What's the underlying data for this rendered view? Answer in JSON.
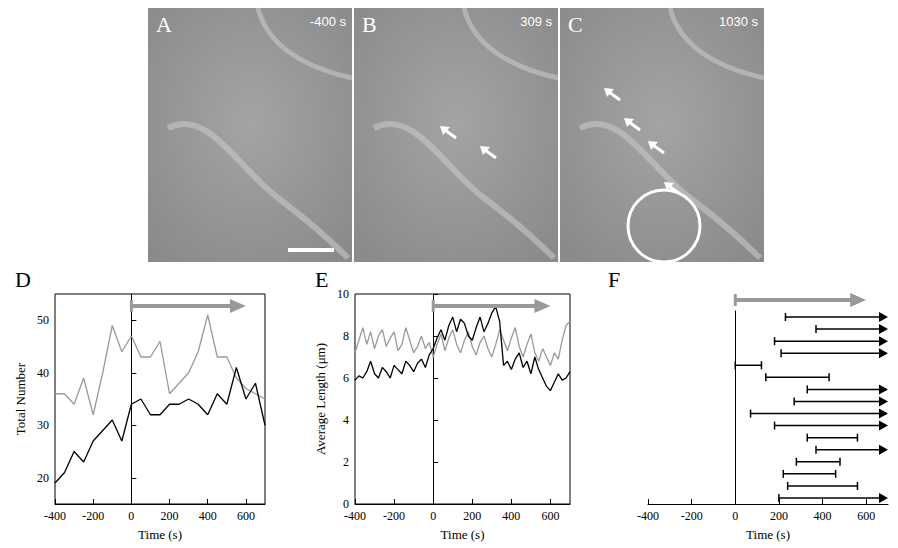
{
  "images": [
    {
      "letter": "A",
      "time": "-400 s"
    },
    {
      "letter": "B",
      "time": "309 s"
    },
    {
      "letter": "C",
      "time": "1030 s"
    }
  ],
  "chart_data": [
    {
      "panel": "D",
      "type": "line",
      "x": [
        -400,
        -350,
        -300,
        -250,
        -200,
        -150,
        -100,
        -50,
        0,
        50,
        100,
        150,
        200,
        250,
        300,
        350,
        400,
        450,
        500,
        550,
        600,
        650,
        700
      ],
      "series": [
        {
          "color": "#999999",
          "values": [
            36,
            36,
            34,
            39,
            32,
            40,
            49,
            44,
            47,
            43,
            43,
            46,
            36,
            38,
            40,
            44,
            51,
            43,
            43,
            39,
            37,
            36,
            35
          ]
        },
        {
          "color": "#000000",
          "values": [
            19,
            21,
            25,
            23,
            27,
            29,
            31,
            27,
            34,
            35,
            32,
            32,
            34,
            34,
            35,
            34,
            32,
            36,
            34,
            41,
            35,
            38,
            30
          ]
        }
      ],
      "xlabel": "Time (s)",
      "ylabel": "Total Number",
      "xlim": [
        -400,
        700
      ],
      "xticks": [
        -400,
        -200,
        0,
        200,
        400,
        600
      ],
      "ylim": [
        15,
        55
      ],
      "yticks": [
        20,
        30,
        40,
        50
      ],
      "arrow": {
        "x": [
          0,
          600
        ],
        "color": "#999999"
      }
    },
    {
      "panel": "E",
      "type": "line",
      "x": [
        -400,
        -380,
        -360,
        -340,
        -320,
        -300,
        -280,
        -260,
        -240,
        -220,
        -200,
        -180,
        -160,
        -140,
        -120,
        -100,
        -80,
        -60,
        -40,
        -20,
        0,
        20,
        40,
        60,
        80,
        100,
        120,
        140,
        160,
        180,
        200,
        220,
        240,
        260,
        280,
        300,
        320,
        340,
        360,
        380,
        400,
        420,
        440,
        460,
        480,
        500,
        520,
        540,
        560,
        580,
        600,
        620,
        640,
        660,
        680,
        700
      ],
      "series": [
        {
          "color": "#999999",
          "values": [
            7.2,
            7.8,
            8.4,
            7.6,
            8.2,
            7.4,
            8.0,
            8.3,
            7.5,
            7.9,
            8.2,
            7.3,
            7.6,
            8.4,
            7.8,
            7.2,
            7.5,
            8.0,
            7.4,
            7.7,
            7.0,
            7.6,
            8.1,
            7.3,
            7.9,
            8.3,
            7.6,
            7.2,
            7.8,
            8.2,
            7.5,
            7.1,
            7.7,
            8.0,
            7.4,
            7.0,
            7.6,
            8.3,
            7.8,
            7.3,
            7.9,
            8.4,
            7.5,
            7.0,
            7.6,
            8.1,
            7.2,
            6.8,
            7.4,
            7.0,
            6.6,
            7.2,
            6.9,
            7.8,
            8.5,
            8.7
          ]
        },
        {
          "color": "#000000",
          "values": [
            5.9,
            6.1,
            6.0,
            6.3,
            6.8,
            6.2,
            6.0,
            6.5,
            6.3,
            6.0,
            6.6,
            6.4,
            6.2,
            6.8,
            6.6,
            6.3,
            6.7,
            6.9,
            6.5,
            7.1,
            7.4,
            7.9,
            8.3,
            7.8,
            8.5,
            8.9,
            8.2,
            8.8,
            8.6,
            8.0,
            7.8,
            8.4,
            8.9,
            8.2,
            8.6,
            9.1,
            9.4,
            8.7,
            6.6,
            6.8,
            6.4,
            6.9,
            7.2,
            6.5,
            6.8,
            6.2,
            7.0,
            6.4,
            6.0,
            5.6,
            5.4,
            5.8,
            6.2,
            5.9,
            6.0,
            6.3
          ]
        }
      ],
      "xlabel": "Time (s)",
      "ylabel": "Average Length (μm)",
      "xlim": [
        -400,
        700
      ],
      "xticks": [
        -400,
        -200,
        0,
        200,
        400,
        600
      ],
      "ylim": [
        0,
        10
      ],
      "yticks": [
        0,
        2,
        4,
        6,
        8,
        10
      ],
      "arrow": {
        "x": [
          0,
          600
        ],
        "color": "#999999"
      }
    },
    {
      "panel": "F",
      "type": "interval",
      "categories": [
        null,
        null,
        null,
        null,
        null,
        null,
        null,
        null,
        null,
        null,
        null,
        null,
        null,
        null,
        null,
        null
      ],
      "bars": [
        {
          "start": 230,
          "end": 700,
          "continues": true
        },
        {
          "start": 370,
          "end": 700,
          "continues": true
        },
        {
          "start": 180,
          "end": 700,
          "continues": true
        },
        {
          "start": 210,
          "end": 700,
          "continues": true
        },
        {
          "start": 0,
          "end": 120,
          "continues": false
        },
        {
          "start": 140,
          "end": 430,
          "continues": false
        },
        {
          "start": 330,
          "end": 700,
          "continues": true
        },
        {
          "start": 270,
          "end": 700,
          "continues": true
        },
        {
          "start": 70,
          "end": 700,
          "continues": true
        },
        {
          "start": 180,
          "end": 700,
          "continues": true
        },
        {
          "start": 330,
          "end": 560,
          "continues": false
        },
        {
          "start": 370,
          "end": 700,
          "continues": true
        },
        {
          "start": 280,
          "end": 480,
          "continues": false
        },
        {
          "start": 220,
          "end": 460,
          "continues": false
        },
        {
          "start": 240,
          "end": 560,
          "continues": false
        },
        {
          "start": 200,
          "end": 700,
          "continues": true
        }
      ],
      "xlabel": "Time (s)",
      "xlim": [
        -400,
        700
      ],
      "xticks": [
        -400,
        -200,
        0,
        200,
        400,
        600
      ],
      "tick_labels": "x",
      "arrow": {
        "x": [
          0,
          600
        ],
        "color": "#999999"
      }
    }
  ]
}
